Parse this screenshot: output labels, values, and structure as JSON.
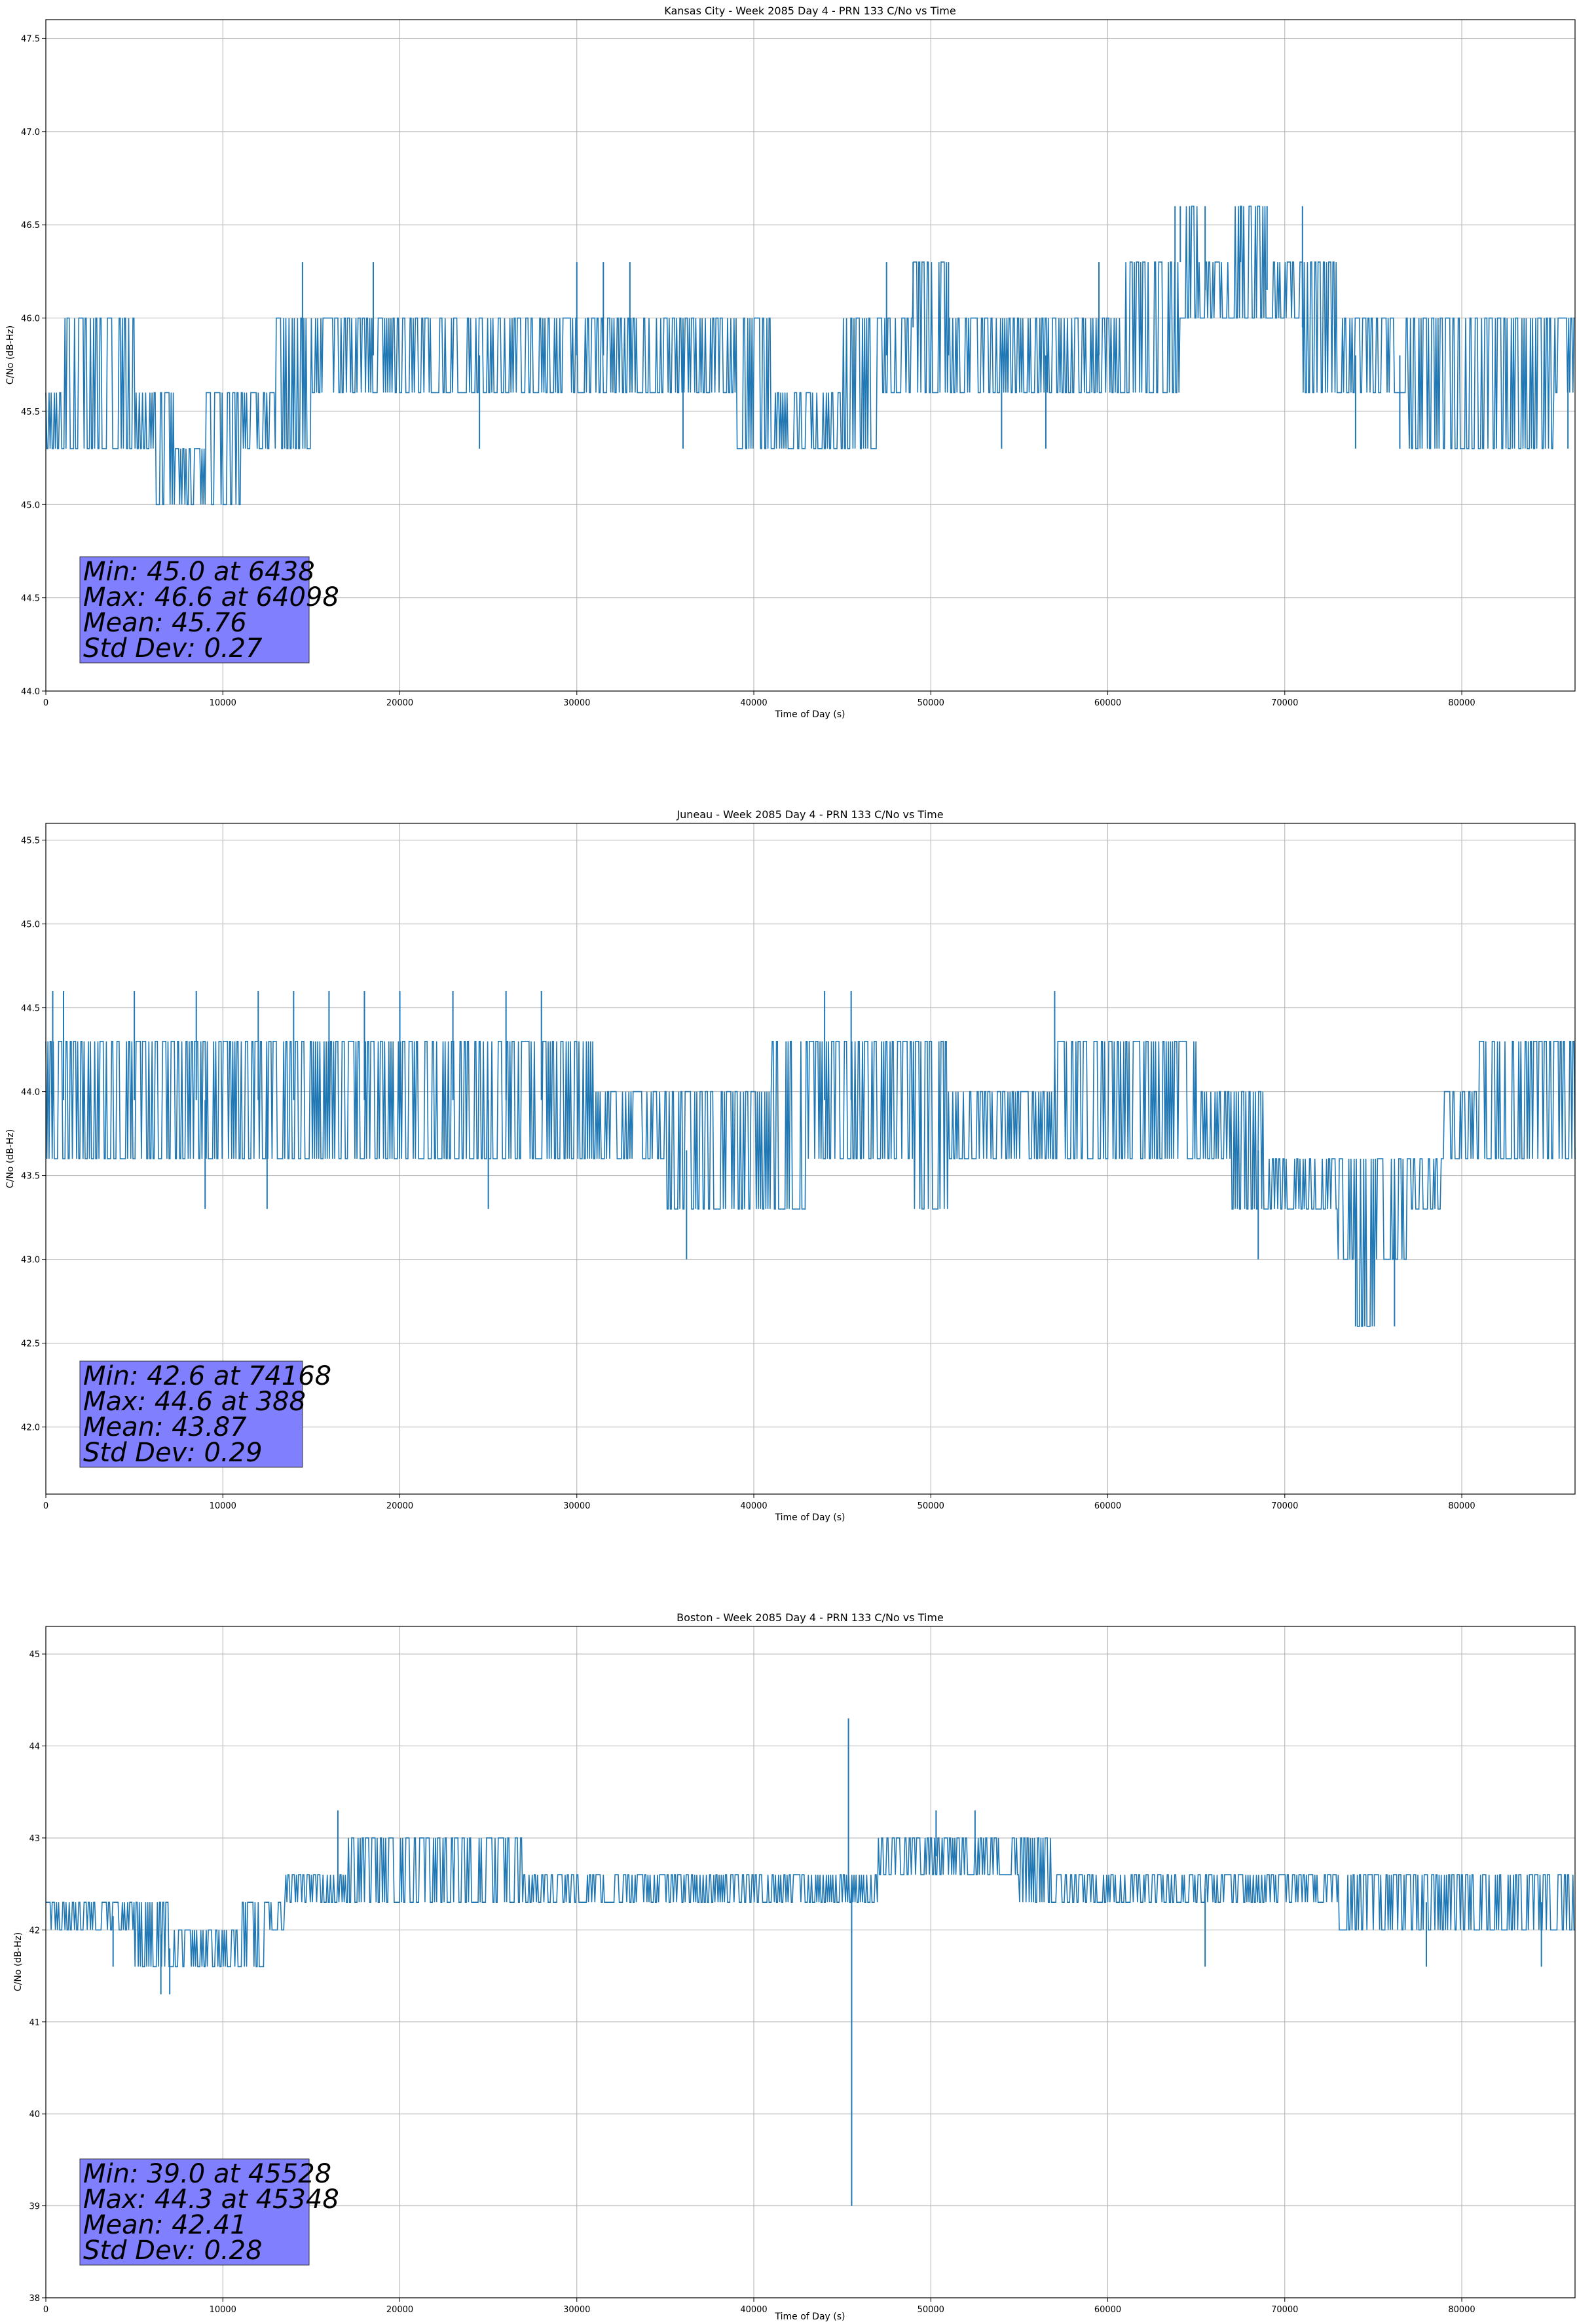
{
  "chart_data": [
    {
      "type": "line",
      "title": "Kansas City - Week 2085 Day 4 - PRN 133 C/No vs Time",
      "xlabel": "Time of Day (s)",
      "ylabel": "C/No (dB-Hz)",
      "xlim": [
        0,
        86400
      ],
      "ylim": [
        44.0,
        47.6
      ],
      "xticks": [
        0,
        10000,
        20000,
        30000,
        40000,
        50000,
        60000,
        70000,
        80000
      ],
      "yticks": [
        "44.0",
        "44.5",
        "45.0",
        "45.5",
        "46.0",
        "46.5",
        "47.0",
        "47.5"
      ],
      "grid": true,
      "color": "#1f77b4",
      "series": [
        {
          "x": [
            0,
            2000,
            4000,
            6000,
            6438,
            8000,
            10000,
            12000,
            14000,
            16000,
            18000,
            20000,
            22000,
            24000,
            26000,
            28000,
            30000,
            32000,
            34000,
            36000,
            38000,
            40000,
            42000,
            44000,
            46000,
            48000,
            50000,
            52000,
            54000,
            56000,
            58000,
            60000,
            62000,
            64000,
            64098,
            66000,
            68000,
            70000,
            72000,
            74000,
            76000,
            78000,
            80000,
            82000,
            84000,
            86400
          ],
          "band_low": [
            45.3,
            45.3,
            45.3,
            45.3,
            45.0,
            45.0,
            45.0,
            45.3,
            45.3,
            45.6,
            45.6,
            45.6,
            45.6,
            45.6,
            45.6,
            45.6,
            45.6,
            45.6,
            45.6,
            45.6,
            45.6,
            45.3,
            45.3,
            45.3,
            45.3,
            45.6,
            45.6,
            45.6,
            45.6,
            45.6,
            45.6,
            45.6,
            45.6,
            45.6,
            46.0,
            46.0,
            46.0,
            46.0,
            45.6,
            45.6,
            45.6,
            45.3,
            45.3,
            45.3,
            45.3,
            45.6
          ],
          "band_high": [
            45.6,
            46.0,
            46.0,
            45.6,
            45.6,
            45.3,
            45.6,
            45.6,
            46.0,
            46.0,
            46.0,
            46.0,
            46.0,
            46.0,
            46.0,
            46.0,
            46.0,
            46.0,
            46.0,
            46.0,
            46.0,
            46.0,
            45.6,
            45.6,
            46.0,
            46.0,
            46.3,
            46.0,
            46.0,
            46.0,
            46.0,
            46.0,
            46.3,
            46.3,
            46.6,
            46.3,
            46.6,
            46.3,
            46.3,
            46.0,
            46.0,
            46.0,
            46.0,
            46.0,
            46.0,
            46.0
          ]
        }
      ],
      "spikes": [
        [
          14500,
          46.3
        ],
        [
          18500,
          46.3
        ],
        [
          30000,
          46.3
        ],
        [
          31500,
          46.3
        ],
        [
          33000,
          46.3
        ],
        [
          47500,
          46.3
        ],
        [
          49000,
          46.3
        ],
        [
          51000,
          46.3
        ],
        [
          59500,
          46.3
        ],
        [
          63800,
          46.6
        ],
        [
          64098,
          46.6
        ],
        [
          65500,
          46.6
        ],
        [
          67500,
          46.6
        ],
        [
          69000,
          46.6
        ],
        [
          71000,
          46.6
        ],
        [
          24500,
          45.3
        ],
        [
          36000,
          45.3
        ],
        [
          54000,
          45.3
        ],
        [
          56500,
          45.3
        ],
        [
          74000,
          45.3
        ],
        [
          76500,
          45.3
        ],
        [
          86000,
          45.3
        ]
      ],
      "stats": [
        "Min: 45.0 at 6438",
        "Max: 46.6 at 64098",
        "Mean: 45.76",
        "Std Dev: 0.27"
      ]
    },
    {
      "type": "line",
      "title": "Juneau - Week 2085 Day 4 - PRN 133 C/No vs Time",
      "xlabel": "Time of Day (s)",
      "ylabel": "C/No (dB-Hz)",
      "xlim": [
        0,
        86400
      ],
      "ylim": [
        41.6,
        45.6
      ],
      "xticks": [
        0,
        10000,
        20000,
        30000,
        40000,
        50000,
        60000,
        70000,
        80000
      ],
      "yticks": [
        "42.0",
        "42.5",
        "43.0",
        "43.5",
        "44.0",
        "44.5",
        "45.0",
        "45.5"
      ],
      "grid": true,
      "color": "#1f77b4",
      "series": [
        {
          "x": [
            0,
            2000,
            4000,
            6000,
            8000,
            10000,
            12000,
            14000,
            16000,
            18000,
            20000,
            22000,
            24000,
            26000,
            28000,
            30000,
            32000,
            34000,
            36000,
            38000,
            40000,
            42000,
            44000,
            46000,
            48000,
            50000,
            52000,
            54000,
            56000,
            58000,
            60000,
            62000,
            64000,
            66000,
            68000,
            70000,
            72000,
            74000,
            74168,
            76000,
            78000,
            80000,
            82000,
            84000,
            86400
          ],
          "band_low": [
            43.6,
            43.6,
            43.6,
            43.6,
            43.6,
            43.6,
            43.6,
            43.6,
            43.6,
            43.6,
            43.6,
            43.6,
            43.6,
            43.6,
            43.6,
            43.6,
            43.6,
            43.6,
            43.3,
            43.3,
            43.3,
            43.3,
            43.6,
            43.6,
            43.6,
            43.3,
            43.6,
            43.6,
            43.6,
            43.6,
            43.6,
            43.6,
            43.6,
            43.6,
            43.3,
            43.3,
            43.3,
            43.0,
            42.6,
            43.0,
            43.3,
            43.6,
            43.6,
            43.6,
            43.6
          ],
          "band_high": [
            44.3,
            44.3,
            44.3,
            44.3,
            44.3,
            44.3,
            44.3,
            44.3,
            44.3,
            44.3,
            44.3,
            44.3,
            44.3,
            44.3,
            44.3,
            44.3,
            44.0,
            44.0,
            44.0,
            44.0,
            44.0,
            44.3,
            44.3,
            44.3,
            44.3,
            44.3,
            44.0,
            44.0,
            44.0,
            44.3,
            44.3,
            44.3,
            44.3,
            44.0,
            44.0,
            43.6,
            43.6,
            43.6,
            43.6,
            43.6,
            43.6,
            44.0,
            44.3,
            44.3,
            44.3
          ]
        }
      ],
      "spikes": [
        [
          388,
          44.6
        ],
        [
          1000,
          44.6
        ],
        [
          5000,
          44.6
        ],
        [
          8500,
          44.6
        ],
        [
          12000,
          44.6
        ],
        [
          14000,
          44.6
        ],
        [
          16000,
          44.6
        ],
        [
          18000,
          44.6
        ],
        [
          20000,
          44.6
        ],
        [
          23000,
          44.6
        ],
        [
          26000,
          44.6
        ],
        [
          28000,
          44.6
        ],
        [
          44000,
          44.6
        ],
        [
          45500,
          44.6
        ],
        [
          57000,
          44.6
        ],
        [
          9000,
          43.3
        ],
        [
          12500,
          43.3
        ],
        [
          25000,
          43.3
        ],
        [
          36200,
          43.0
        ],
        [
          68500,
          43.0
        ],
        [
          74000,
          42.6
        ],
        [
          76200,
          42.6
        ]
      ],
      "stats": [
        "Min: 42.6 at 74168",
        "Max: 44.6 at 388",
        "Mean: 43.87",
        "Std Dev: 0.29"
      ]
    },
    {
      "type": "line",
      "title": "Boston - Week 2085 Day 4 - PRN 133 C/No vs Time",
      "xlabel": "Time of Day (s)",
      "ylabel": "C/No (dB-Hz)",
      "xlim": [
        0,
        86400
      ],
      "ylim": [
        38,
        45.3
      ],
      "xticks": [
        0,
        10000,
        20000,
        30000,
        40000,
        50000,
        60000,
        70000,
        80000
      ],
      "yticks": [
        "38",
        "39",
        "40",
        "41",
        "42",
        "43",
        "44",
        "45"
      ],
      "grid": true,
      "color": "#1f77b4",
      "series": [
        {
          "x": [
            0,
            2000,
            4000,
            6000,
            8000,
            10000,
            12000,
            13000,
            14000,
            16000,
            18000,
            20000,
            22000,
            24000,
            26000,
            28000,
            30000,
            32000,
            34000,
            36000,
            38000,
            40000,
            42000,
            44000,
            46000,
            48000,
            50000,
            52000,
            54000,
            56000,
            58000,
            60000,
            62000,
            64000,
            66000,
            68000,
            70000,
            72000,
            74000,
            76000,
            78000,
            80000,
            82000,
            84000,
            86400
          ],
          "band_low": [
            42.0,
            42.0,
            42.0,
            41.6,
            41.6,
            41.6,
            41.6,
            42.0,
            42.3,
            42.3,
            42.3,
            42.3,
            42.3,
            42.3,
            42.3,
            42.3,
            42.3,
            42.3,
            42.3,
            42.3,
            42.3,
            42.3,
            42.3,
            42.3,
            42.3,
            42.6,
            42.6,
            42.6,
            42.6,
            42.3,
            42.3,
            42.3,
            42.3,
            42.3,
            42.3,
            42.3,
            42.3,
            42.3,
            42.0,
            42.0,
            42.0,
            42.0,
            42.0,
            42.0,
            42.0
          ],
          "band_high": [
            42.3,
            42.3,
            42.3,
            42.3,
            42.0,
            42.0,
            42.3,
            42.3,
            42.6,
            42.6,
            43.0,
            43.0,
            43.0,
            43.0,
            43.0,
            42.6,
            42.6,
            42.6,
            42.6,
            42.6,
            42.6,
            42.6,
            42.6,
            42.6,
            42.6,
            43.0,
            43.0,
            43.0,
            43.0,
            43.0,
            42.6,
            42.6,
            42.6,
            42.6,
            42.6,
            42.6,
            42.6,
            42.6,
            42.6,
            42.6,
            42.6,
            42.6,
            42.6,
            42.6,
            42.6
          ]
        }
      ],
      "spikes": [
        [
          45348,
          44.3
        ],
        [
          45528,
          39.0
        ],
        [
          16500,
          43.3
        ],
        [
          50300,
          43.3
        ],
        [
          52500,
          43.3
        ],
        [
          3800,
          41.6
        ],
        [
          6500,
          41.3
        ],
        [
          7000,
          41.3
        ],
        [
          65500,
          41.6
        ],
        [
          78000,
          41.6
        ],
        [
          84500,
          41.6
        ]
      ],
      "stats": [
        "Min: 39.0 at 45528",
        "Max: 44.3 at 45348",
        "Mean: 42.41",
        "Std Dev: 0.28"
      ]
    }
  ]
}
